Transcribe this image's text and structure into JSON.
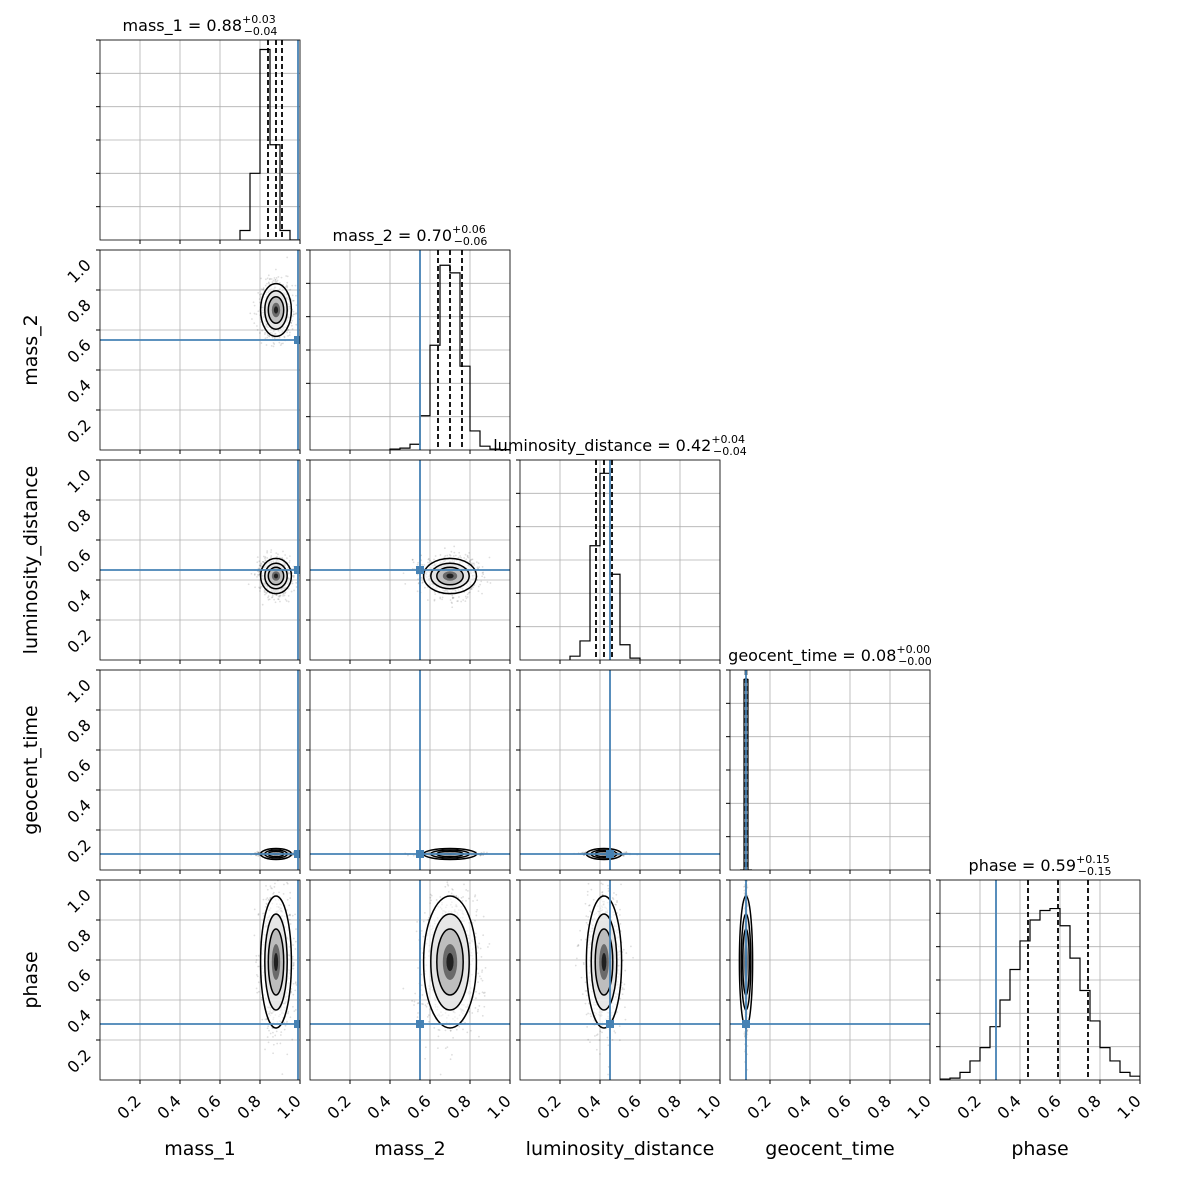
{
  "chart_data": {
    "type": "corner",
    "parameters": [
      "mass_1",
      "mass_2",
      "luminosity_distance",
      "geocent_time",
      "phase"
    ],
    "axis_range": [
      0,
      1
    ],
    "tick_labels": [
      "0.2",
      "0.4",
      "0.6",
      "0.8",
      "1.0"
    ],
    "grid": true,
    "truths": [
      0.99,
      0.55,
      0.45,
      0.08,
      0.28
    ],
    "truth_color": "#4682b4",
    "titles": [
      {
        "label": "mass_1 = 0.88",
        "plus": "+0.03",
        "minus": "−0.04"
      },
      {
        "label": "mass_2 = 0.70",
        "plus": "+0.06",
        "minus": "−0.06"
      },
      {
        "label": "luminosity_distance = 0.42",
        "plus": "+0.04",
        "minus": "−0.04"
      },
      {
        "label": "geocent_time = 0.08",
        "plus": "+0.00",
        "minus": "−0.00"
      },
      {
        "label": "phase = 0.59",
        "plus": "+0.15",
        "minus": "−0.15"
      }
    ],
    "posterior": {
      "mass_1": {
        "median": 0.88,
        "sd": 0.035
      },
      "mass_2": {
        "median": 0.7,
        "sd": 0.06
      },
      "luminosity_distance": {
        "median": 0.42,
        "sd": 0.04
      },
      "geocent_time": {
        "median": 0.08,
        "sd": 0.004
      },
      "phase": {
        "median": 0.59,
        "sd": 0.15
      }
    },
    "quantiles": [
      [
        0.84,
        0.88,
        0.91
      ],
      [
        0.64,
        0.7,
        0.76
      ],
      [
        0.38,
        0.42,
        0.46
      ],
      [
        0.078,
        0.08,
        0.082
      ],
      [
        0.44,
        0.59,
        0.74
      ]
    ],
    "histograms": [
      {
        "edges": [
          0.7,
          0.75,
          0.8,
          0.85,
          0.9,
          0.95,
          1.0
        ],
        "counts": [
          0.05,
          0.35,
          1.0,
          0.5,
          0.05,
          0.0
        ]
      },
      {
        "edges": [
          0.4,
          0.45,
          0.5,
          0.55,
          0.6,
          0.65,
          0.7,
          0.75,
          0.8,
          0.85,
          0.9,
          0.95,
          1.0
        ],
        "counts": [
          0.005,
          0.01,
          0.03,
          0.18,
          0.55,
          0.97,
          0.93,
          0.44,
          0.1,
          0.02,
          0.005,
          0.002
        ]
      },
      {
        "edges": [
          0.25,
          0.3,
          0.35,
          0.4,
          0.45,
          0.5,
          0.55,
          0.6
        ],
        "counts": [
          0.02,
          0.1,
          0.6,
          0.98,
          0.45,
          0.08,
          0.01
        ]
      },
      {
        "edges": [
          0.05,
          0.07,
          0.09,
          0.11
        ],
        "counts": [
          0.0,
          1.0,
          0.0
        ]
      },
      {
        "edges": [
          0.0,
          0.05,
          0.1,
          0.15,
          0.2,
          0.25,
          0.3,
          0.35,
          0.4,
          0.45,
          0.5,
          0.55,
          0.6,
          0.65,
          0.7,
          0.75,
          0.8,
          0.85,
          0.9,
          0.95,
          1.0
        ],
        "counts": [
          0.005,
          0.01,
          0.04,
          0.1,
          0.17,
          0.28,
          0.42,
          0.58,
          0.73,
          0.84,
          0.89,
          0.9,
          0.81,
          0.64,
          0.47,
          0.31,
          0.17,
          0.1,
          0.04,
          0.02
        ]
      }
    ]
  }
}
